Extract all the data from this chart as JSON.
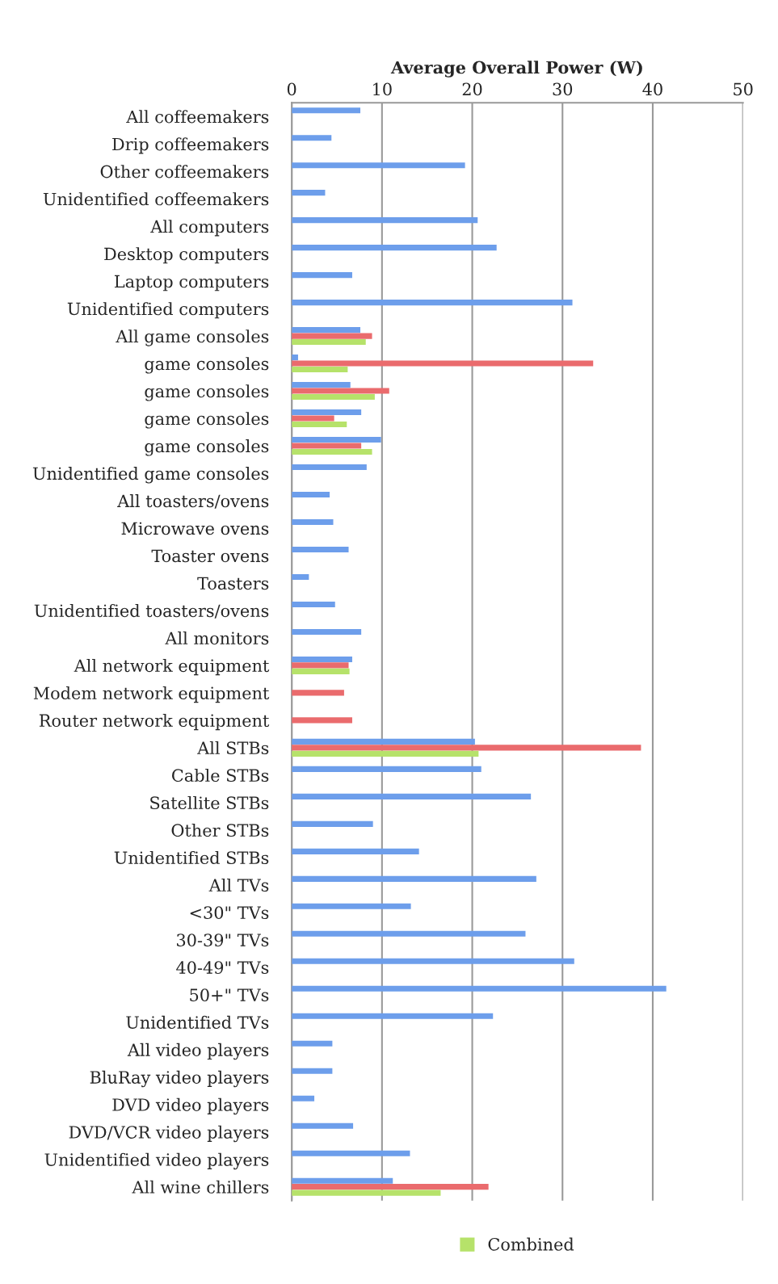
{
  "chart_data": {
    "type": "bar",
    "orientation": "horizontal",
    "xlabel": "Average Overall Power (W)",
    "categories": [
      "All coffeemakers",
      "Drip coffeemakers",
      "Other coffeemakers",
      "Unidentified coffeemakers",
      "All computers",
      "Desktop computers",
      "Laptop computers",
      "Unidentified computers",
      "All game consoles",
      "game consoles",
      "game consoles",
      "game consoles",
      "game consoles",
      "Unidentified game consoles",
      "All toasters/ovens",
      "Microwave ovens",
      "Toaster ovens",
      "Toasters",
      "Unidentified toasters/ovens",
      "All monitors",
      "All network equipment",
      "Modem network equipment",
      "Router network equipment",
      "All STBs",
      "Cable STBs",
      "Satellite STBs",
      "Other STBs",
      "Unidentified STBs",
      "All TVs",
      "<30\" TVs",
      "30-39\" TVs",
      "40-49\" TVs",
      "50+\" TVs",
      "Unidentified TVs",
      "All video players",
      "BluRay video players",
      "DVD video players",
      "DVD/VCR video players",
      "Unidentified video players",
      "All wine chillers"
    ],
    "series": [
      {
        "color": "#6d9eeb",
        "values": [
          7.6,
          4.4,
          19.2,
          3.7,
          20.6,
          22.7,
          6.7,
          31.1,
          7.6,
          0.7,
          6.5,
          7.7,
          9.9,
          8.3,
          4.2,
          4.6,
          6.3,
          1.9,
          4.8,
          7.7,
          6.7,
          null,
          null,
          20.3,
          21.0,
          26.5,
          9.0,
          14.1,
          27.1,
          13.2,
          25.9,
          31.3,
          41.5,
          22.3,
          4.5,
          4.5,
          2.5,
          6.8,
          13.1,
          11.2
        ]
      },
      {
        "color": "#ea6b6d",
        "values": [
          null,
          null,
          null,
          null,
          null,
          null,
          null,
          null,
          8.9,
          33.4,
          10.8,
          4.7,
          7.7,
          null,
          null,
          null,
          null,
          null,
          null,
          null,
          6.3,
          5.8,
          6.7,
          38.7,
          null,
          null,
          null,
          null,
          null,
          null,
          null,
          null,
          null,
          null,
          null,
          null,
          null,
          null,
          null,
          21.8
        ]
      },
      {
        "name": "Combined",
        "color": "#b6e26a",
        "values": [
          null,
          null,
          null,
          null,
          null,
          null,
          null,
          null,
          8.2,
          6.2,
          9.2,
          6.1,
          8.9,
          null,
          null,
          null,
          null,
          null,
          null,
          null,
          6.4,
          null,
          null,
          20.7,
          null,
          null,
          null,
          null,
          null,
          null,
          null,
          null,
          null,
          null,
          null,
          null,
          null,
          null,
          null,
          16.5
        ]
      }
    ],
    "xlim": [
      0,
      50
    ],
    "xticks": [
      0,
      10,
      20,
      30,
      40,
      50
    ],
    "grid": "x",
    "legend": "bottom"
  }
}
